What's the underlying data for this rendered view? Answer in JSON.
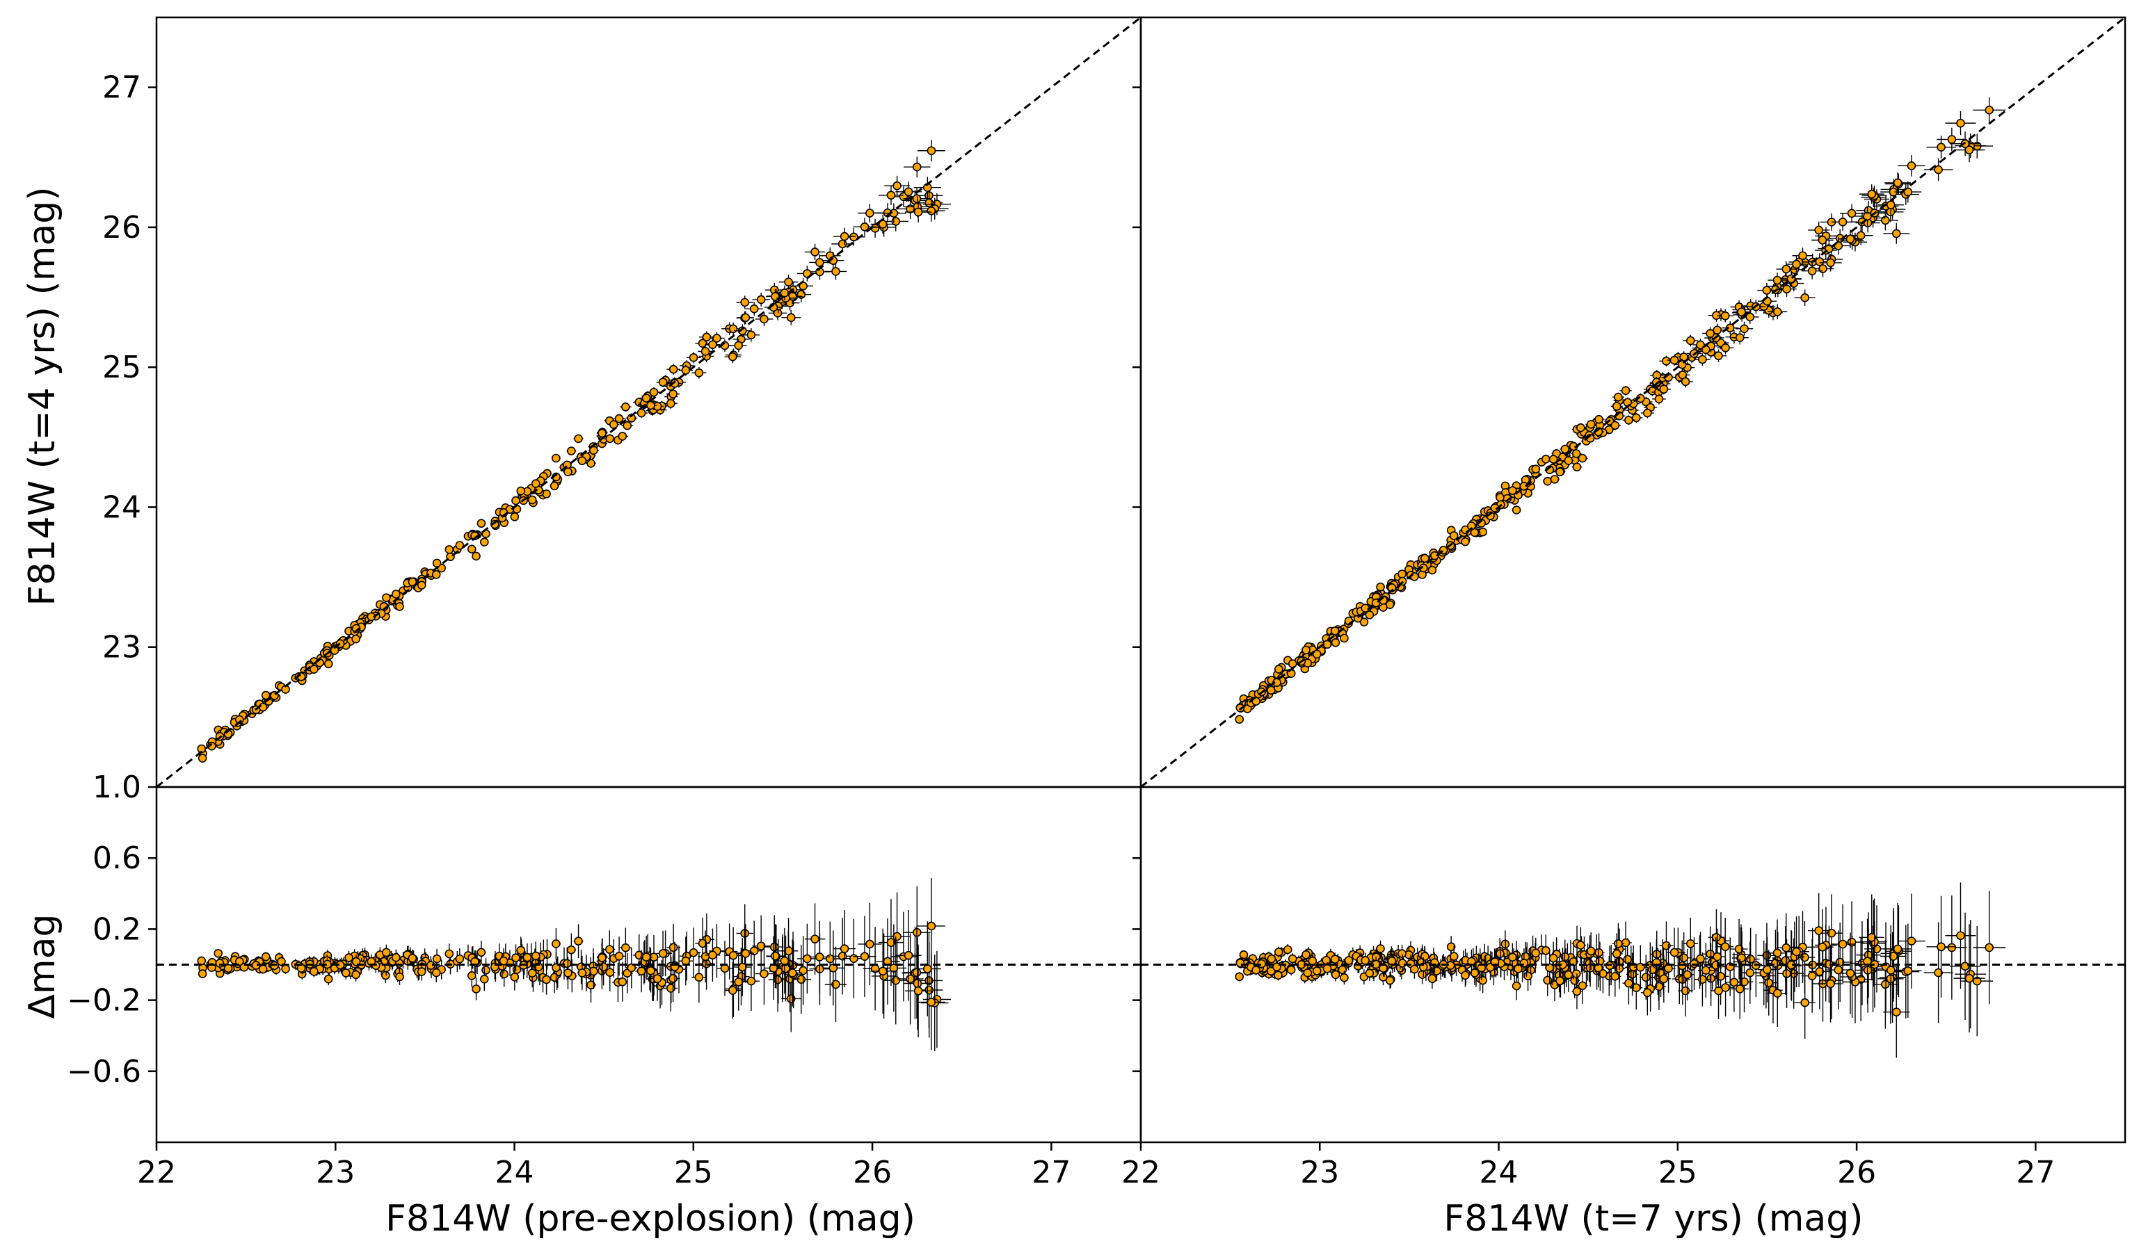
{
  "chart_data": [
    {
      "type": "scatter",
      "panel": "top-left",
      "title": "",
      "xlabel": "",
      "ylabel": "F814W (t=4 yrs) (mag)",
      "xlim": [
        22,
        27.5
      ],
      "ylim": [
        22,
        27.5
      ],
      "yticks": [
        23,
        24,
        25,
        26,
        27
      ],
      "reference_line": "y = x (dashed)",
      "marker": "orange circle with black edge, black error bars"
    },
    {
      "type": "scatter",
      "panel": "top-right",
      "xlabel": "",
      "ylabel": "",
      "xlim": [
        22,
        27.5
      ],
      "ylim": [
        22,
        27.5
      ],
      "reference_line": "y = x (dashed)",
      "marker": "orange circle with black edge, black error bars"
    },
    {
      "type": "scatter",
      "panel": "bottom-left",
      "xlabel": "F814W (pre-explosion) (mag)",
      "ylabel": "Δmag",
      "xlim": [
        22,
        27.5
      ],
      "ylim": [
        -1.0,
        1.0
      ],
      "xticks": [
        22,
        23,
        24,
        25,
        26,
        27
      ],
      "yticks": [
        "1.0",
        "0.6",
        "0.2",
        "−0.2",
        "−0.6"
      ],
      "reference_line": "y = 0 (dashed)"
    },
    {
      "type": "scatter",
      "panel": "bottom-right",
      "xlabel": "F814W (t=7 yrs) (mag)",
      "ylabel": "",
      "xlim": [
        22,
        27.5
      ],
      "ylim": [
        -1.0,
        1.0
      ],
      "xticks": [
        22,
        23,
        24,
        25,
        26,
        27
      ],
      "reference_line": "y = 0 (dashed)"
    }
  ],
  "labels": {
    "ylabel_top": "F814W (t=4 yrs) (mag)",
    "ylabel_bottom": "Δmag",
    "xlabel_left": "F814W (pre-explosion) (mag)",
    "xlabel_right": "F814W (t=7 yrs) (mag)"
  },
  "ticks": {
    "top_y": [
      "23",
      "24",
      "25",
      "26",
      "27"
    ],
    "bottom_y": [
      "1.0",
      "0.6",
      "0.2",
      "−0.2",
      "−0.6"
    ],
    "x": [
      "22",
      "23",
      "24",
      "25",
      "26",
      "27"
    ]
  },
  "colors": {
    "marker_fill": "#ffa500",
    "marker_edge": "#000000",
    "errorbar": "#000000",
    "reference_line": "#000000"
  }
}
